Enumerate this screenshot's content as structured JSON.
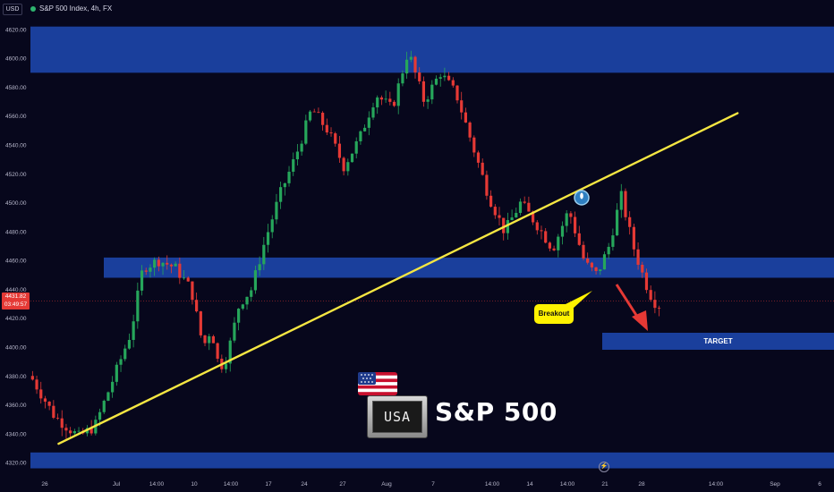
{
  "header": {
    "currency": "USD",
    "title": "S&P 500 Index, 4h, FX"
  },
  "price_tag": {
    "price": "4431.82",
    "countdown": "03:49:57"
  },
  "annotations": {
    "breakout": "Breakout",
    "target": "TARGET",
    "logo_text": "S&P 500",
    "logo_badge": "USA"
  },
  "colors": {
    "background": "#07071c",
    "zone": "#1a3f9c",
    "trendline": "#f5e642",
    "up_candle": "#26a65b",
    "down_candle": "#e53935",
    "arrow": "#e53935",
    "breakout_bubble": "#fff200"
  },
  "chart_data": {
    "type": "candlestick",
    "title": "S&P 500 Index, 4h, FX",
    "y_ticks": [
      4320,
      4340,
      4360,
      4380,
      4400,
      4420,
      4440,
      4460,
      4480,
      4500,
      4520,
      4540,
      4560,
      4580,
      4600,
      4620
    ],
    "ylim": [
      4312,
      4628
    ],
    "x_ticks": [
      "26",
      "Jul",
      "14:00",
      "10",
      "14:00",
      "17",
      "24",
      "27",
      "Aug",
      "7",
      "14:00",
      "14",
      "14:00",
      "21",
      "28",
      "14:00",
      "Sep",
      "6"
    ],
    "current_price": 4431.82,
    "zones": [
      {
        "from": 4590,
        "to": 4622
      },
      {
        "from": 4448,
        "to": 4462
      },
      {
        "from": 4316,
        "to": 4327
      }
    ],
    "target_zone": {
      "from": 4396,
      "to": 4407,
      "label": "TARGET"
    },
    "trendline": {
      "start": {
        "t": 0.035,
        "y": 4333
      },
      "end": {
        "t": 0.88,
        "y": 4562
      }
    },
    "price_path": [
      [
        0.0,
        4380
      ],
      [
        0.03,
        4352
      ],
      [
        0.06,
        4338
      ],
      [
        0.08,
        4345
      ],
      [
        0.11,
        4388
      ],
      [
        0.125,
        4410
      ],
      [
        0.14,
        4455
      ],
      [
        0.16,
        4460
      ],
      [
        0.18,
        4455
      ],
      [
        0.2,
        4440
      ],
      [
        0.215,
        4400
      ],
      [
        0.225,
        4413
      ],
      [
        0.235,
        4385
      ],
      [
        0.245,
        4394
      ],
      [
        0.26,
        4430
      ],
      [
        0.275,
        4440
      ],
      [
        0.29,
        4470
      ],
      [
        0.31,
        4505
      ],
      [
        0.33,
        4532
      ],
      [
        0.35,
        4565
      ],
      [
        0.37,
        4550
      ],
      [
        0.39,
        4525
      ],
      [
        0.41,
        4545
      ],
      [
        0.43,
        4575
      ],
      [
        0.45,
        4565
      ],
      [
        0.47,
        4605
      ],
      [
        0.49,
        4570
      ],
      [
        0.51,
        4590
      ],
      [
        0.53,
        4575
      ],
      [
        0.55,
        4540
      ],
      [
        0.57,
        4505
      ],
      [
        0.59,
        4480
      ],
      [
        0.61,
        4500
      ],
      [
        0.63,
        4485
      ],
      [
        0.65,
        4468
      ],
      [
        0.67,
        4495
      ],
      [
        0.69,
        4458
      ],
      [
        0.705,
        4450
      ],
      [
        0.72,
        4470
      ],
      [
        0.735,
        4505
      ],
      [
        0.75,
        4470
      ],
      [
        0.765,
        4445
      ],
      [
        0.775,
        4432
      ],
      [
        0.785,
        4428
      ]
    ]
  }
}
